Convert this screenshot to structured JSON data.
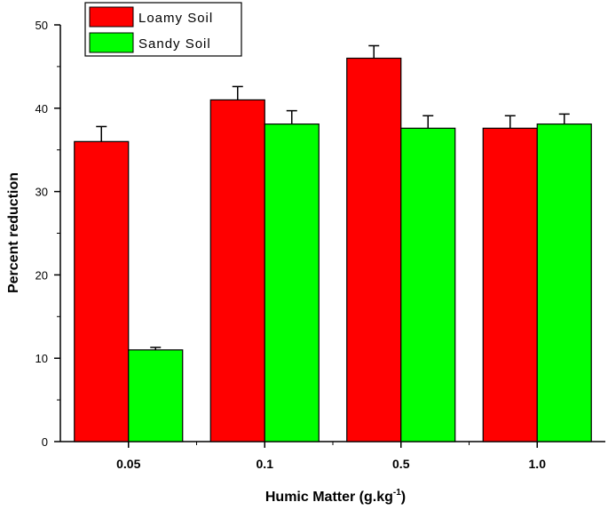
{
  "chart_data": {
    "type": "bar",
    "categories": [
      "0.05",
      "0.1",
      "0.5",
      "1.0"
    ],
    "series": [
      {
        "name": "Loamy Soil",
        "color": "#ff0000",
        "values": [
          36.0,
          41.0,
          46.0,
          37.6
        ],
        "errors": [
          1.8,
          1.6,
          1.5,
          1.5
        ]
      },
      {
        "name": "Sandy Soil",
        "color": "#00ff00",
        "values": [
          11.0,
          38.1,
          37.6,
          38.1
        ],
        "errors": [
          0.3,
          1.6,
          1.5,
          1.2
        ]
      }
    ],
    "xlabel": "Humic Matter (g.kg",
    "xlabel_sup": "-1",
    "xlabel_suffix": ")",
    "ylabel": "Percent reduction",
    "ylim": [
      0,
      50
    ],
    "yticks": [
      0,
      10,
      20,
      30,
      40,
      50
    ],
    "legend_position": "top-left",
    "grid": false
  }
}
